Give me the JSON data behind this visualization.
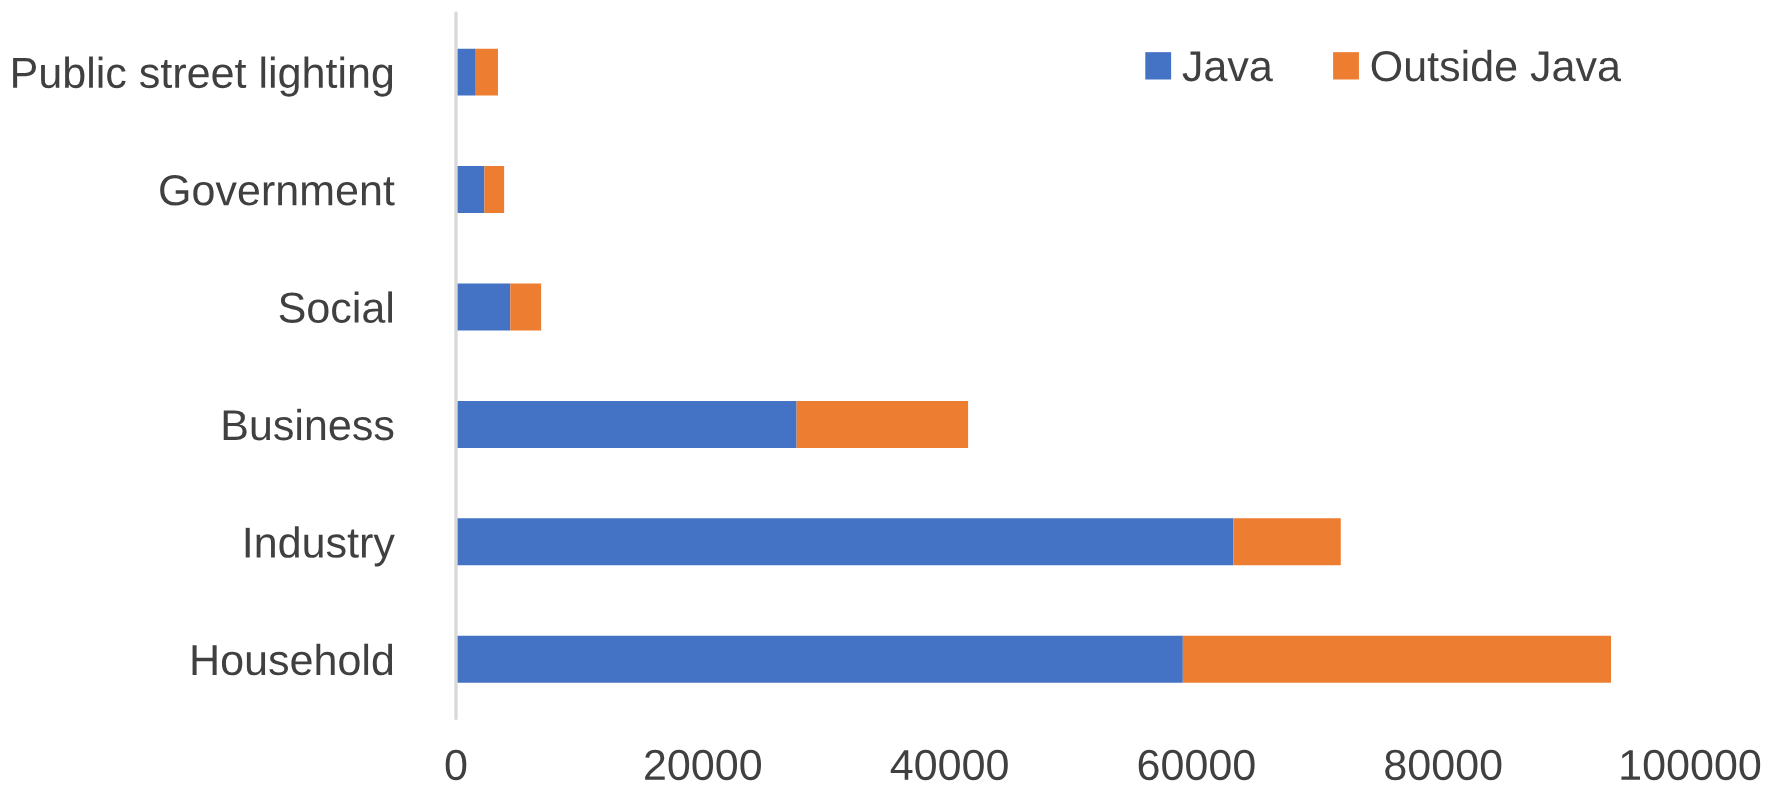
{
  "chart_data": {
    "type": "bar",
    "orientation": "horizontal",
    "stacked": true,
    "categories": [
      "Public street lighting",
      "Government",
      "Social",
      "Business",
      "Industry",
      "Household"
    ],
    "series": [
      {
        "name": "Java",
        "color": "#4472c4",
        "values": [
          1600,
          2300,
          4400,
          27600,
          63000,
          58900
        ]
      },
      {
        "name": "Outside Java",
        "color": "#ed7d31",
        "values": [
          1800,
          1600,
          2500,
          13900,
          8700,
          34700
        ]
      }
    ],
    "xlim": [
      0,
      100000
    ],
    "xticks": [
      0,
      20000,
      40000,
      60000,
      80000,
      100000
    ],
    "grid": false,
    "legend": "top right"
  }
}
